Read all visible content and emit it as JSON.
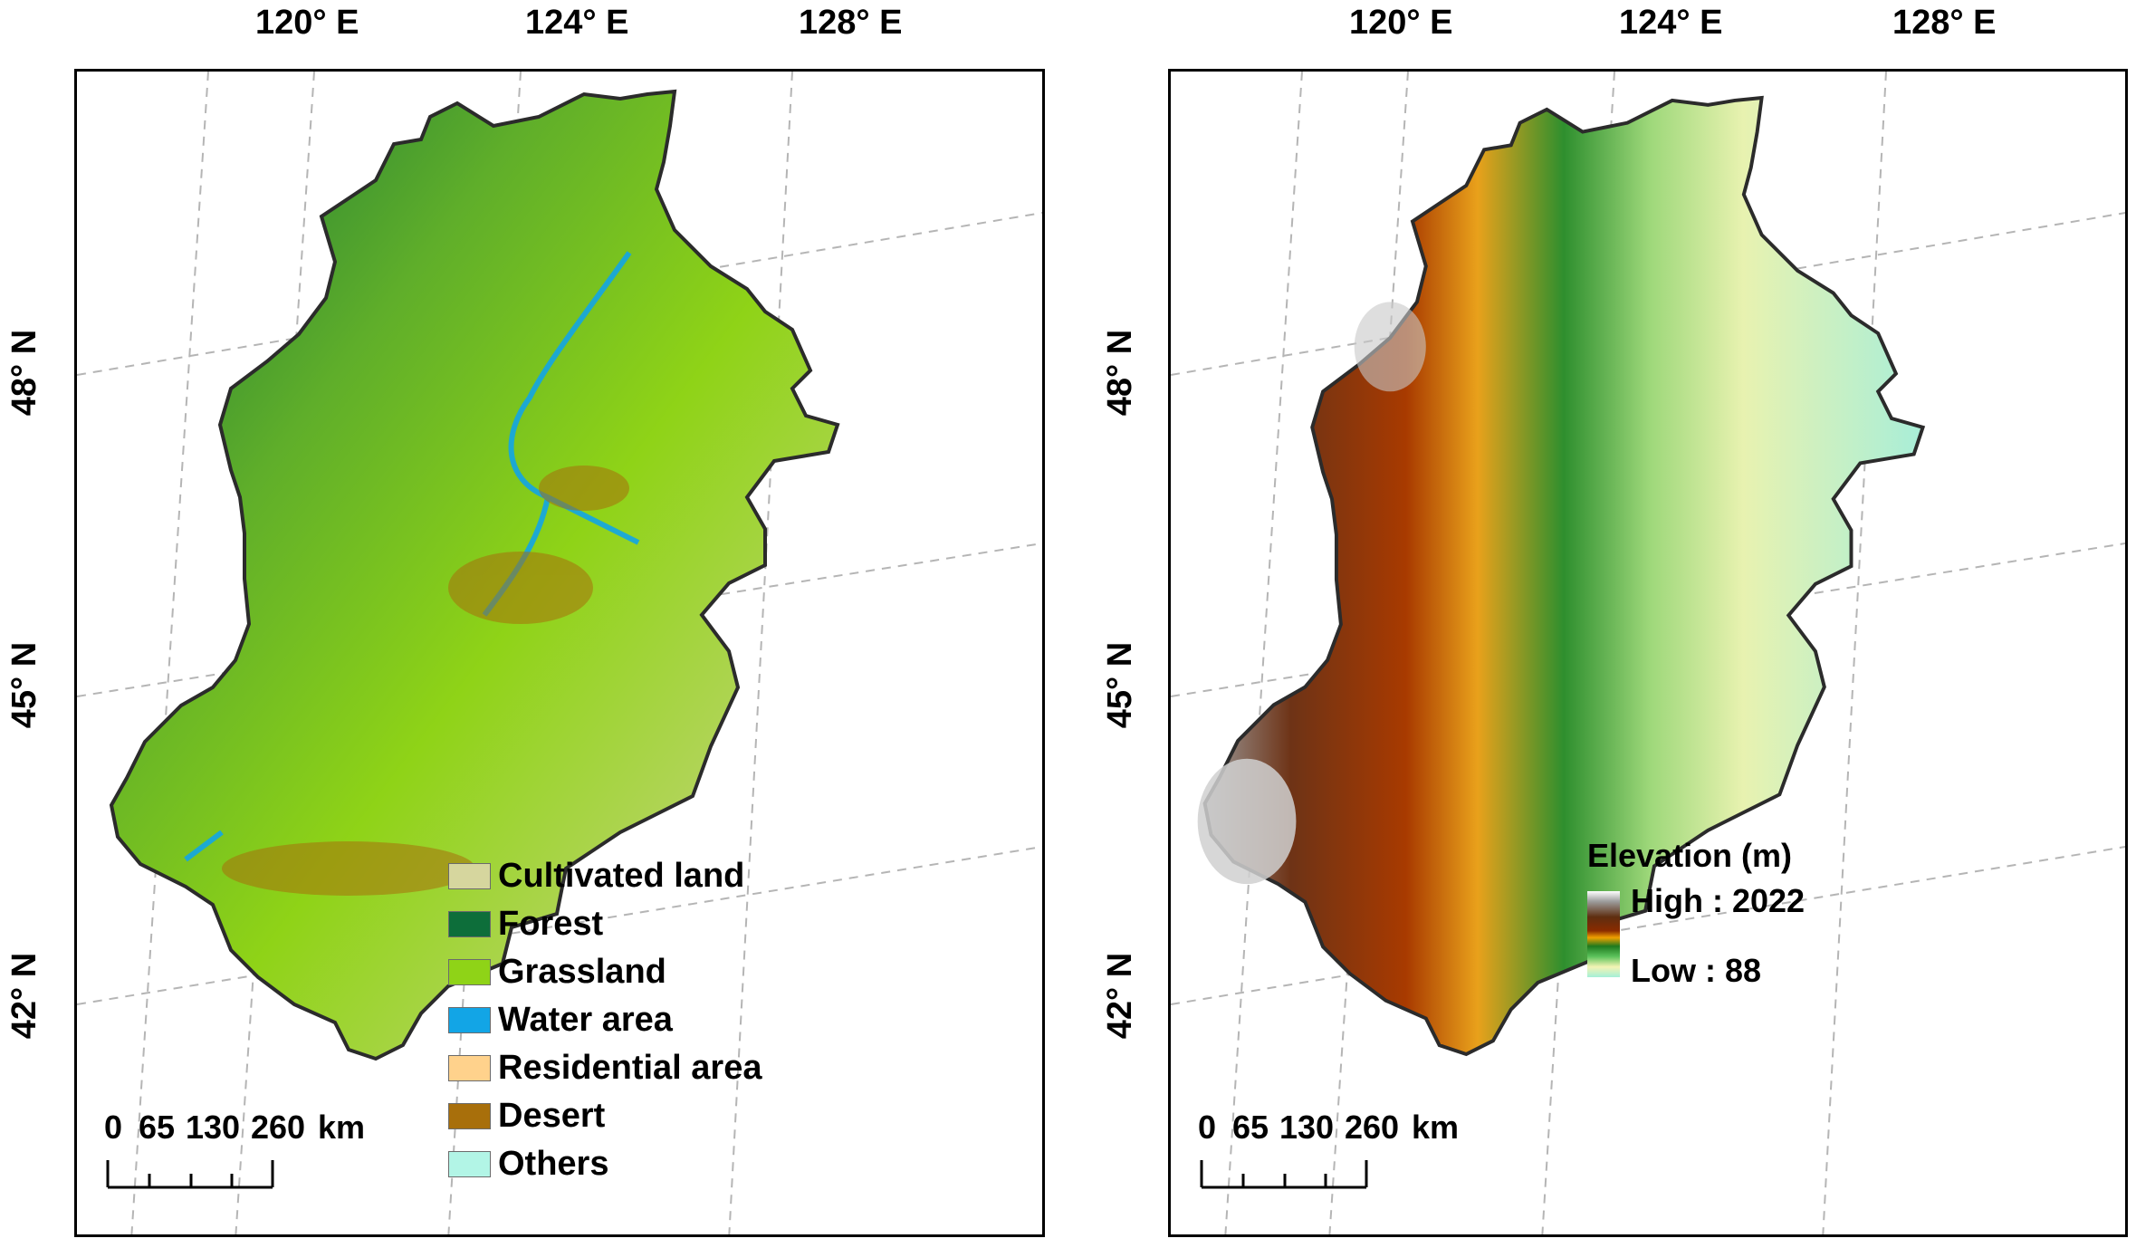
{
  "axes": {
    "longitude_labels": [
      "120° E",
      "124° E",
      "128° E"
    ],
    "latitude_labels": [
      "48° N",
      "45° N",
      "42° N"
    ]
  },
  "left_map": {
    "legend": [
      {
        "label": "Cultivated land",
        "color": "#d6d69e"
      },
      {
        "label": "Forest",
        "color": "#0d6e3a"
      },
      {
        "label": "Grassland",
        "color": "#8fd317"
      },
      {
        "label": "Water area",
        "color": "#12a5e6"
      },
      {
        "label": "Residential area",
        "color": "#ffd28c"
      },
      {
        "label": "Desert",
        "color": "#a86f0b"
      },
      {
        "label": "Others",
        "color": "#b2f5e6"
      }
    ],
    "scalebar": {
      "ticks": [
        "0",
        "65",
        "130",
        "260"
      ],
      "unit": "km"
    }
  },
  "right_map": {
    "elevation_legend": {
      "title": "Elevation (m)",
      "high": "High : 2022",
      "low": "Low : 88"
    },
    "scalebar": {
      "ticks": [
        "0",
        "65",
        "130",
        "260"
      ],
      "unit": "km"
    }
  },
  "colors": {
    "border": "#2b2b2b",
    "gridline": "#b5b5b5"
  }
}
